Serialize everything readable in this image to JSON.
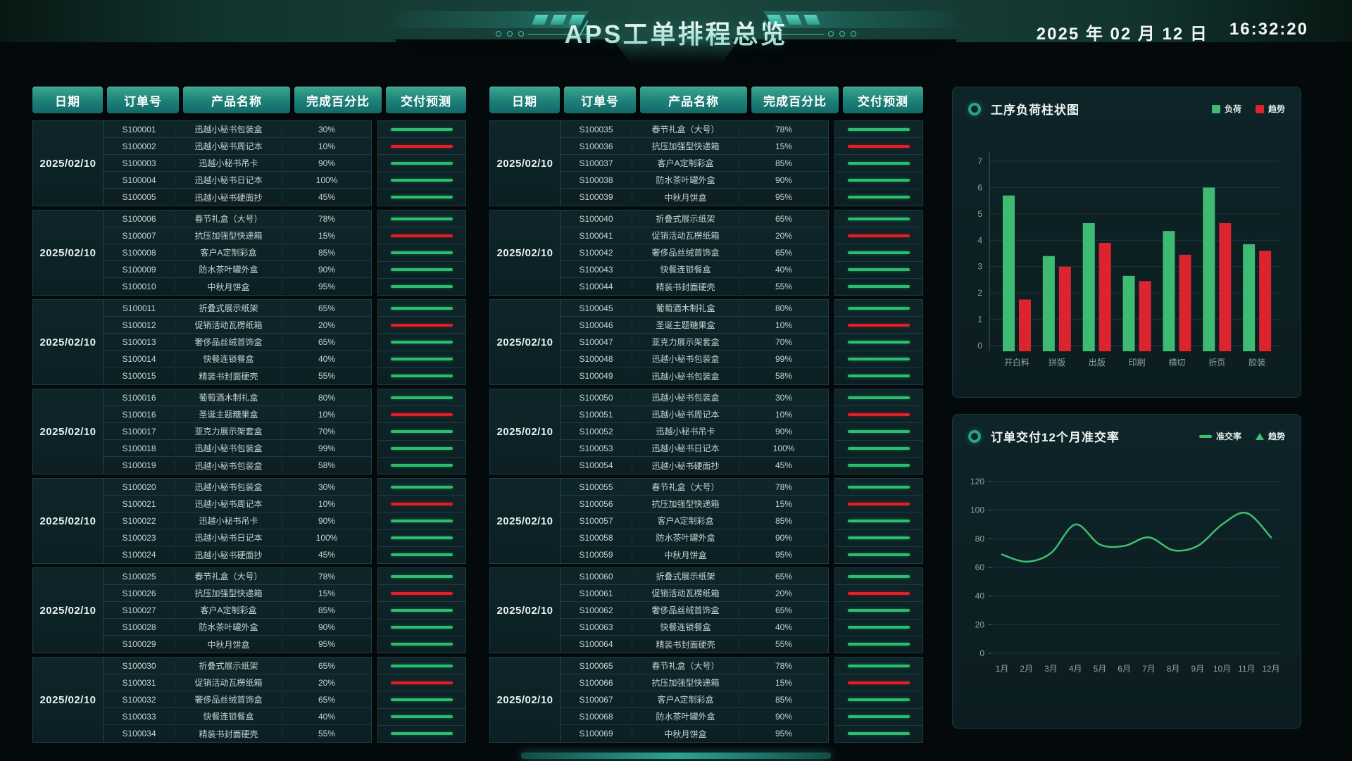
{
  "header": {
    "title": "APS工单排程总览",
    "date": "2025 年 02 月 12 日",
    "time": "16:32:20"
  },
  "tables": {
    "columns": [
      "日期",
      "订单号",
      "产品名称",
      "完成百分比",
      "交付预测"
    ],
    "row_format": [
      "order",
      "product",
      "percent",
      "forecast_color"
    ],
    "left": {
      "groups": [
        {
          "date": "2025/02/10",
          "rows": [
            [
              "S100001",
              "迅越小秘书包装盒",
              "30%",
              "green"
            ],
            [
              "S100002",
              "迅越小秘书周记本",
              "10%",
              "red"
            ],
            [
              "S100003",
              "迅越小秘书吊卡",
              "90%",
              "green"
            ],
            [
              "S100004",
              "迅越小秘书日记本",
              "100%",
              "green"
            ],
            [
              "S100005",
              "迅越小秘书硬面抄",
              "45%",
              "green"
            ]
          ]
        },
        {
          "date": "2025/02/10",
          "rows": [
            [
              "S100006",
              "春节礼盒（大号）",
              "78%",
              "green"
            ],
            [
              "S100007",
              "抗压加强型快递箱",
              "15%",
              "red"
            ],
            [
              "S100008",
              "客户A定制彩盒",
              "85%",
              "green"
            ],
            [
              "S100009",
              "防水茶叶罐外盒",
              "90%",
              "green"
            ],
            [
              "S100010",
              "中秋月饼盒",
              "95%",
              "green"
            ]
          ]
        },
        {
          "date": "2025/02/10",
          "rows": [
            [
              "S100011",
              "折叠式展示纸架",
              "65%",
              "green"
            ],
            [
              "S100012",
              "促销活动瓦楞纸箱",
              "20%",
              "red"
            ],
            [
              "S100013",
              "奢侈品丝绒首饰盒",
              "65%",
              "green"
            ],
            [
              "S100014",
              "快餐连锁餐盒",
              "40%",
              "green"
            ],
            [
              "S100015",
              "精装书封面硬壳",
              "55%",
              "green"
            ]
          ]
        },
        {
          "date": "2025/02/10",
          "rows": [
            [
              "S100016",
              "葡萄酒木制礼盒",
              "80%",
              "green"
            ],
            [
              "S100016",
              "圣诞主题糖果盒",
              "10%",
              "red"
            ],
            [
              "S100017",
              "亚克力展示架套盒",
              "70%",
              "green"
            ],
            [
              "S100018",
              "迅越小秘书包装盒",
              "99%",
              "green"
            ],
            [
              "S100019",
              "迅越小秘书包装盒",
              "58%",
              "green"
            ]
          ]
        },
        {
          "date": "2025/02/10",
          "rows": [
            [
              "S100020",
              "迅越小秘书包装盒",
              "30%",
              "green"
            ],
            [
              "S100021",
              "迅越小秘书周记本",
              "10%",
              "red"
            ],
            [
              "S100022",
              "迅越小秘书吊卡",
              "90%",
              "green"
            ],
            [
              "S100023",
              "迅越小秘书日记本",
              "100%",
              "green"
            ],
            [
              "S100024",
              "迅越小秘书硬面抄",
              "45%",
              "green"
            ]
          ]
        },
        {
          "date": "2025/02/10",
          "rows": [
            [
              "S100025",
              "春节礼盒（大号）",
              "78%",
              "green"
            ],
            [
              "S100026",
              "抗压加强型快递箱",
              "15%",
              "red"
            ],
            [
              "S100027",
              "客户A定制彩盒",
              "85%",
              "green"
            ],
            [
              "S100028",
              "防水茶叶罐外盒",
              "90%",
              "green"
            ],
            [
              "S100029",
              "中秋月饼盒",
              "95%",
              "green"
            ]
          ]
        },
        {
          "date": "2025/02/10",
          "rows": [
            [
              "S100030",
              "折叠式展示纸架",
              "65%",
              "green"
            ],
            [
              "S100031",
              "促销活动瓦楞纸箱",
              "20%",
              "red"
            ],
            [
              "S100032",
              "奢侈品丝绒首饰盒",
              "65%",
              "green"
            ],
            [
              "S100033",
              "快餐连锁餐盒",
              "40%",
              "green"
            ],
            [
              "S100034",
              "精装书封面硬壳",
              "55%",
              "green"
            ]
          ]
        }
      ]
    },
    "middle": {
      "groups": [
        {
          "date": "2025/02/10",
          "rows": [
            [
              "S100035",
              "春节礼盒（大号）",
              "78%",
              "green"
            ],
            [
              "S100036",
              "抗压加强型快递箱",
              "15%",
              "red"
            ],
            [
              "S100037",
              "客户A定制彩盒",
              "85%",
              "green"
            ],
            [
              "S100038",
              "防水茶叶罐外盒",
              "90%",
              "green"
            ],
            [
              "S100039",
              "中秋月饼盒",
              "95%",
              "green"
            ]
          ]
        },
        {
          "date": "2025/02/10",
          "rows": [
            [
              "S100040",
              "折叠式展示纸架",
              "65%",
              "green"
            ],
            [
              "S100041",
              "促销活动瓦楞纸箱",
              "20%",
              "red"
            ],
            [
              "S100042",
              "奢侈品丝绒首饰盒",
              "65%",
              "green"
            ],
            [
              "S100043",
              "快餐连锁餐盒",
              "40%",
              "green"
            ],
            [
              "S100044",
              "精装书封面硬壳",
              "55%",
              "green"
            ]
          ]
        },
        {
          "date": "2025/02/10",
          "rows": [
            [
              "S100045",
              "葡萄酒木制礼盒",
              "80%",
              "green"
            ],
            [
              "S100046",
              "圣诞主题糖果盒",
              "10%",
              "red"
            ],
            [
              "S100047",
              "亚克力展示架套盒",
              "70%",
              "green"
            ],
            [
              "S100048",
              "迅越小秘书包装盒",
              "99%",
              "green"
            ],
            [
              "S100049",
              "迅越小秘书包装盒",
              "58%",
              "green"
            ]
          ]
        },
        {
          "date": "2025/02/10",
          "rows": [
            [
              "S100050",
              "迅越小秘书包装盒",
              "30%",
              "green"
            ],
            [
              "S100051",
              "迅越小秘书周记本",
              "10%",
              "red"
            ],
            [
              "S100052",
              "迅越小秘书吊卡",
              "90%",
              "green"
            ],
            [
              "S100053",
              "迅越小秘书日记本",
              "100%",
              "green"
            ],
            [
              "S100054",
              "迅越小秘书硬面抄",
              "45%",
              "green"
            ]
          ]
        },
        {
          "date": "2025/02/10",
          "rows": [
            [
              "S100055",
              "春节礼盒（大号）",
              "78%",
              "green"
            ],
            [
              "S100056",
              "抗压加强型快递箱",
              "15%",
              "red"
            ],
            [
              "S100057",
              "客户A定制彩盒",
              "85%",
              "green"
            ],
            [
              "S100058",
              "防水茶叶罐外盒",
              "90%",
              "green"
            ],
            [
              "S100059",
              "中秋月饼盒",
              "95%",
              "green"
            ]
          ]
        },
        {
          "date": "2025/02/10",
          "rows": [
            [
              "S100060",
              "折叠式展示纸架",
              "65%",
              "green"
            ],
            [
              "S100061",
              "促销活动瓦楞纸箱",
              "20%",
              "red"
            ],
            [
              "S100062",
              "奢侈品丝绒首饰盒",
              "65%",
              "green"
            ],
            [
              "S100063",
              "快餐连锁餐盒",
              "40%",
              "green"
            ],
            [
              "S100064",
              "精装书封面硬壳",
              "55%",
              "green"
            ]
          ]
        },
        {
          "date": "2025/02/10",
          "rows": [
            [
              "S100065",
              "春节礼盒（大号）",
              "78%",
              "green"
            ],
            [
              "S100066",
              "抗压加强型快递箱",
              "15%",
              "red"
            ],
            [
              "S100067",
              "客户A定制彩盒",
              "85%",
              "green"
            ],
            [
              "S100068",
              "防水茶叶罐外盒",
              "90%",
              "green"
            ],
            [
              "S100069",
              "中秋月饼盒",
              "95%",
              "green"
            ]
          ]
        }
      ]
    }
  },
  "panels": {
    "bar": {
      "title": "工序负荷柱状图",
      "legend": [
        {
          "label": "负荷",
          "color": "#3dbb72",
          "swatch": "square"
        },
        {
          "label": "趋势",
          "color": "#dc2430",
          "swatch": "square"
        }
      ]
    },
    "line": {
      "title": "订单交付12个月准交率",
      "legend": [
        {
          "label": "准交率",
          "color": "#3fbf71",
          "swatch": "line"
        },
        {
          "label": "趋势",
          "color": "#3fbf71",
          "swatch": "triangle"
        }
      ]
    }
  },
  "colors": {
    "forecast_green": "#2bbf6d",
    "forecast_red": "#e01f27",
    "accent_teal": "#27a28c"
  },
  "chart_data": [
    {
      "type": "bar",
      "title": "工序负荷柱状图",
      "categories": [
        "开白料",
        "拼版",
        "出版",
        "印刷",
        "横切",
        "折页",
        "胶装"
      ],
      "series": [
        {
          "name": "负荷",
          "color": "#3dbb72",
          "values": [
            5.7,
            3.4,
            4.65,
            2.65,
            4.35,
            6.0,
            3.85
          ]
        },
        {
          "name": "趋势",
          "color": "#dc2430",
          "values": [
            1.75,
            3.0,
            3.9,
            2.45,
            3.45,
            4.65,
            3.6
          ]
        }
      ],
      "ylim": [
        0,
        7
      ],
      "yticks": [
        0,
        1,
        2,
        3,
        4,
        5,
        6,
        7
      ],
      "grid": true,
      "legend_position": "top-right"
    },
    {
      "type": "line",
      "title": "订单交付12个月准交率",
      "categories": [
        "1月",
        "2月",
        "3月",
        "4月",
        "5月",
        "6月",
        "7月",
        "8月",
        "9月",
        "10月",
        "11月",
        "12月"
      ],
      "series": [
        {
          "name": "准交率",
          "color": "#3fbf71",
          "values": [
            69,
            64,
            70,
            90,
            76,
            75,
            81,
            72,
            75,
            90,
            98,
            81
          ]
        }
      ],
      "ylim": [
        0,
        120
      ],
      "yticks": [
        0,
        20,
        40,
        60,
        80,
        100,
        120
      ],
      "grid": true,
      "smooth": true,
      "legend_position": "top-right"
    }
  ]
}
